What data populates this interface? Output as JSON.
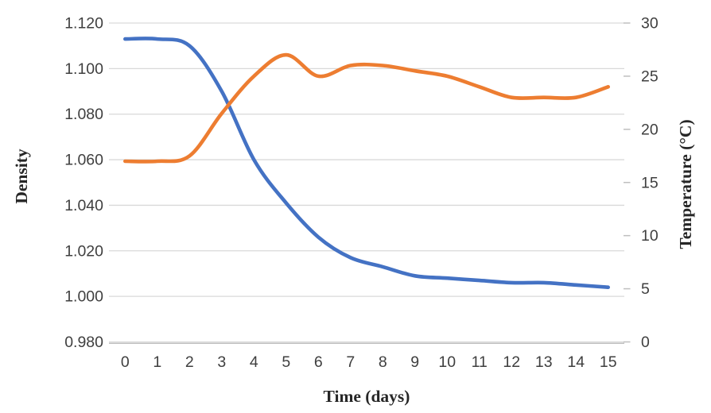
{
  "chart_data": {
    "type": "line",
    "title": "",
    "xlabel": "Time (days)",
    "ylabel_left": "Density",
    "ylabel_right": "Temperature (°C)",
    "categories": [
      0,
      1,
      2,
      3,
      4,
      5,
      6,
      7,
      8,
      9,
      10,
      11,
      12,
      13,
      14,
      15
    ],
    "x_tick_labels": [
      "0",
      "1",
      "2",
      "3",
      "4",
      "5",
      "6",
      "7",
      "8",
      "9",
      "10",
      "11",
      "12",
      "13",
      "14",
      "15"
    ],
    "series": [
      {
        "name": "Density",
        "axis": "left",
        "color": "#4472C4",
        "values": [
          1.113,
          1.113,
          1.11,
          1.09,
          1.06,
          1.041,
          1.026,
          1.017,
          1.013,
          1.009,
          1.008,
          1.007,
          1.006,
          1.006,
          1.005,
          1.004
        ]
      },
      {
        "name": "Temperature",
        "axis": "right",
        "color": "#ED7D31",
        "values": [
          17,
          17,
          17.5,
          21.5,
          25,
          27,
          25,
          26,
          26,
          25.5,
          25,
          24,
          23,
          23,
          23,
          24
        ]
      }
    ],
    "left_axis": {
      "min": 0.98,
      "max": 1.12,
      "step": 0.02,
      "tick_labels": [
        "1.120",
        "1.100",
        "1.080",
        "1.060",
        "1.040",
        "1.020",
        "1.000",
        "0.980"
      ]
    },
    "right_axis": {
      "min": 0,
      "max": 30,
      "step": 5,
      "tick_labels": [
        "30",
        "25",
        "20",
        "15",
        "10",
        "5",
        "0"
      ]
    },
    "grid": true,
    "legend": "none",
    "line_style": "smoothed"
  },
  "colors": {
    "background": "#FFFFFF",
    "grid": "#D9D9D9",
    "axis_line": "#BFBFBF",
    "tick_mark": "#BFBFBF",
    "tick_text": "#3F3F3F",
    "axis_title_text": "#262626",
    "series_density": "#4472C4",
    "series_temperature": "#ED7D31"
  }
}
